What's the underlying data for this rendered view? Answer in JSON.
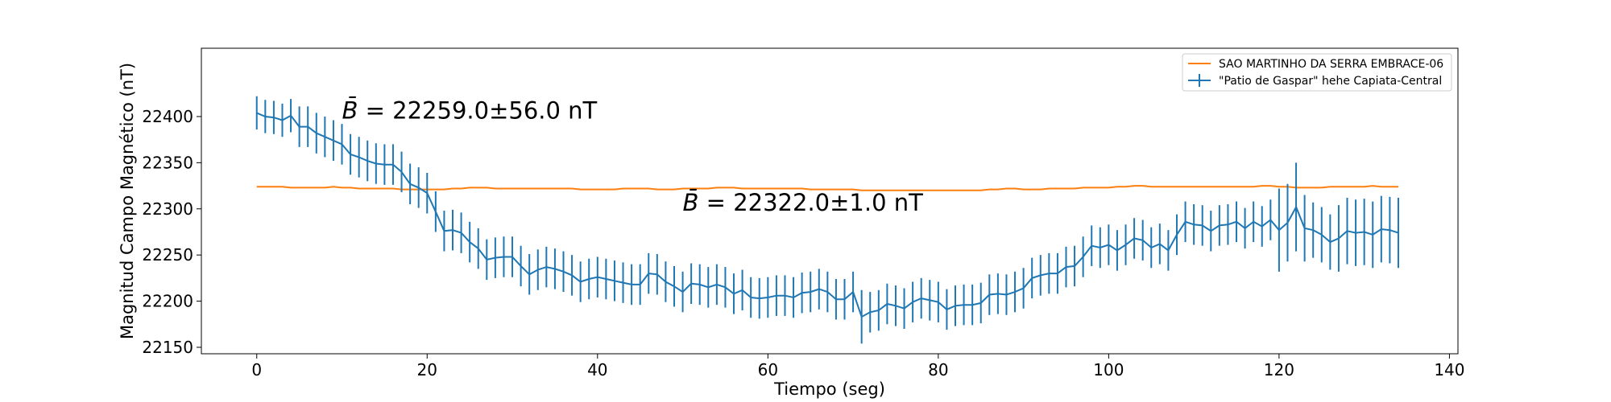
{
  "chart_data": {
    "type": "line",
    "xlabel": "Tiempo (seg)",
    "ylabel": "Magnitud Campo Magnético (nT)",
    "xlim": [
      -6.5,
      141
    ],
    "ylim": [
      22143,
      22474
    ],
    "xticks": [
      0,
      20,
      40,
      60,
      80,
      100,
      120,
      140
    ],
    "yticks": [
      22150,
      22200,
      22250,
      22300,
      22350,
      22400
    ],
    "legend_position": "top-right",
    "annotations": [
      {
        "prefix": "B̄ = ",
        "text": "22259.0±56.0 nT",
        "x": 10,
        "y": 22398
      },
      {
        "prefix": "B̄ = ",
        "text": "22322.0±1.0 nT",
        "x": 50,
        "y": 22298
      }
    ],
    "series": [
      {
        "name": "SAO MARTINHO DA SERRA EMBRACE-06",
        "color": "#ff7f0e",
        "x_start": 0,
        "x_step": 1,
        "values": [
          22324,
          22324,
          22324,
          22324,
          22323,
          22323,
          22323,
          22323,
          22323,
          22324,
          22323,
          22323,
          22322,
          22322,
          22322,
          22322,
          22322,
          22321,
          22321,
          22321,
          22321,
          22321,
          22321,
          22322,
          22322,
          22323,
          22323,
          22323,
          22322,
          22322,
          22322,
          22322,
          22322,
          22322,
          22322,
          22322,
          22322,
          22322,
          22321,
          22321,
          22321,
          22321,
          22321,
          22322,
          22322,
          22322,
          22322,
          22321,
          22321,
          22321,
          22322,
          22322,
          22322,
          22322,
          22323,
          22323,
          22323,
          22322,
          22322,
          22322,
          22322,
          22322,
          22322,
          22322,
          22322,
          22321,
          22321,
          22321,
          22321,
          22321,
          22321,
          22320,
          22320,
          22320,
          22320,
          22320,
          22320,
          22320,
          22320,
          22320,
          22320,
          22320,
          22320,
          22320,
          22320,
          22320,
          22321,
          22321,
          22322,
          22322,
          22321,
          22321,
          22321,
          22322,
          22322,
          22322,
          22322,
          22323,
          22323,
          22323,
          22323,
          22324,
          22324,
          22325,
          22325,
          22324,
          22324,
          22324,
          22324,
          22324,
          22324,
          22324,
          22324,
          22324,
          22324,
          22324,
          22324,
          22324,
          22325,
          22325,
          22324,
          22324,
          22323,
          22323,
          22323,
          22323,
          22324,
          22324,
          22324,
          22324,
          22324,
          22325,
          22324,
          22324,
          22324
        ]
      },
      {
        "name": "\"Patio de Gaspar\" hehe Capiata-Central",
        "color": "#1f77b4",
        "x_start": 0,
        "x_step": 1,
        "values": [
          22404,
          22400,
          22399,
          22396,
          22401,
          22389,
          22389,
          22382,
          22378,
          22374,
          22370,
          22359,
          22356,
          22352,
          22349,
          22348,
          22348,
          22340,
          22327,
          22323,
          22317,
          22297,
          22276,
          22277,
          22274,
          22264,
          22257,
          22245,
          22247,
          22248,
          22248,
          22238,
          22229,
          22234,
          22237,
          22235,
          22232,
          22228,
          22221,
          22224,
          22226,
          22224,
          22222,
          22220,
          22218,
          22218,
          22230,
          22229,
          22221,
          22216,
          22210,
          22219,
          22218,
          22215,
          22218,
          22215,
          22208,
          22212,
          22204,
          22203,
          22204,
          22206,
          22206,
          22204,
          22209,
          22210,
          22213,
          22210,
          22202,
          22202,
          22210,
          22183,
          22188,
          22190,
          22197,
          22195,
          22192,
          22199,
          22203,
          22201,
          22199,
          22191,
          22195,
          22196,
          22196,
          22198,
          22207,
          22208,
          22207,
          22210,
          22214,
          22225,
          22228,
          22230,
          22230,
          22237,
          22238,
          22248,
          22260,
          22258,
          22261,
          22255,
          22261,
          22268,
          22266,
          22258,
          22262,
          22255,
          22272,
          22286,
          22283,
          22282,
          22276,
          22282,
          22283,
          22286,
          22279,
          22286,
          22281,
          22288,
          22277,
          22285,
          22302,
          22279,
          22277,
          22272,
          22264,
          22268,
          22276,
          22274,
          22275,
          22272,
          22278,
          22277,
          22274
        ],
        "errors": [
          18,
          18,
          18,
          18,
          18,
          22,
          22,
          22,
          22,
          22,
          22,
          22,
          22,
          22,
          22,
          22,
          22,
          22,
          22,
          22,
          22,
          22,
          22,
          22,
          22,
          22,
          22,
          22,
          22,
          22,
          22,
          22,
          22,
          22,
          22,
          22,
          22,
          22,
          22,
          22,
          22,
          22,
          22,
          22,
          22,
          22,
          22,
          22,
          22,
          22,
          22,
          22,
          22,
          22,
          22,
          22,
          22,
          22,
          22,
          22,
          22,
          22,
          22,
          22,
          22,
          22,
          22,
          22,
          22,
          22,
          22,
          29,
          22,
          22,
          22,
          22,
          22,
          22,
          22,
          22,
          22,
          22,
          22,
          22,
          22,
          22,
          22,
          22,
          22,
          22,
          22,
          22,
          22,
          22,
          22,
          22,
          22,
          22,
          22,
          22,
          22,
          22,
          22,
          22,
          22,
          22,
          22,
          22,
          22,
          22,
          22,
          22,
          22,
          22,
          22,
          22,
          22,
          22,
          22,
          22,
          45,
          42,
          48,
          36,
          30,
          30,
          30,
          36,
          36,
          36,
          36,
          36,
          36,
          36,
          38
        ]
      }
    ]
  }
}
